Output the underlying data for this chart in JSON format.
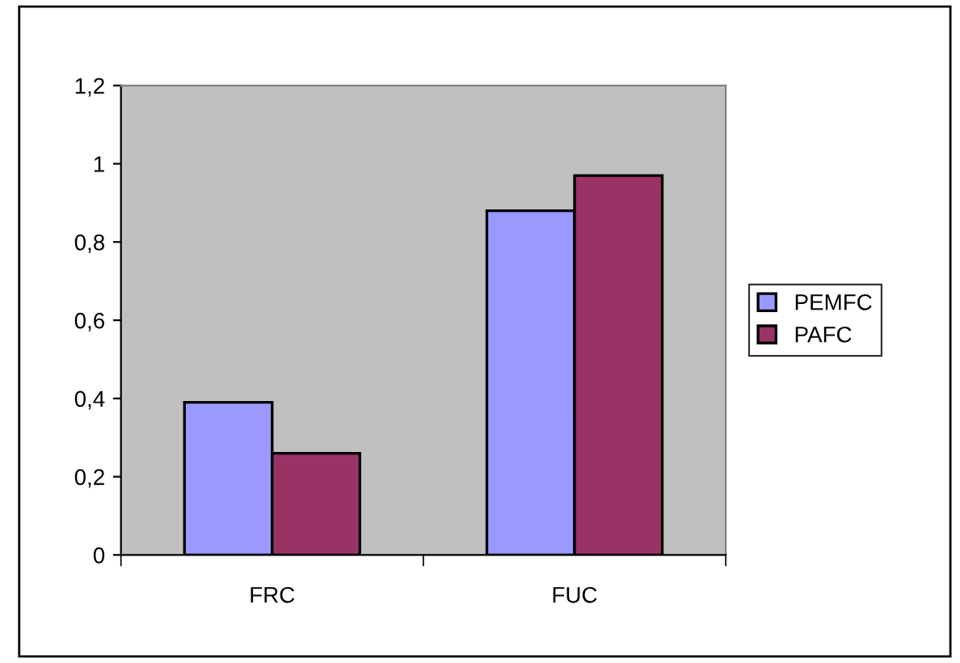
{
  "chart_data": {
    "type": "bar",
    "categories": [
      "FRC",
      "FUC"
    ],
    "series": [
      {
        "name": "PEMFC",
        "color": "#9999ff",
        "values": [
          0.39,
          0.88
        ]
      },
      {
        "name": "PAFC",
        "color": "#993366",
        "values": [
          0.26,
          0.97
        ]
      }
    ],
    "ylim": [
      0,
      1.2
    ],
    "yticks": [
      0,
      {
        "value": 0.2,
        "label": "0,2"
      },
      {
        "value": 0.4,
        "label": "0,4"
      },
      {
        "value": 0.6,
        "label": "0,6"
      },
      {
        "value": 0.8,
        "label": "0,8"
      },
      1,
      {
        "value": 1.2,
        "label": "1,2"
      }
    ],
    "grid": false,
    "legend": "right"
  }
}
